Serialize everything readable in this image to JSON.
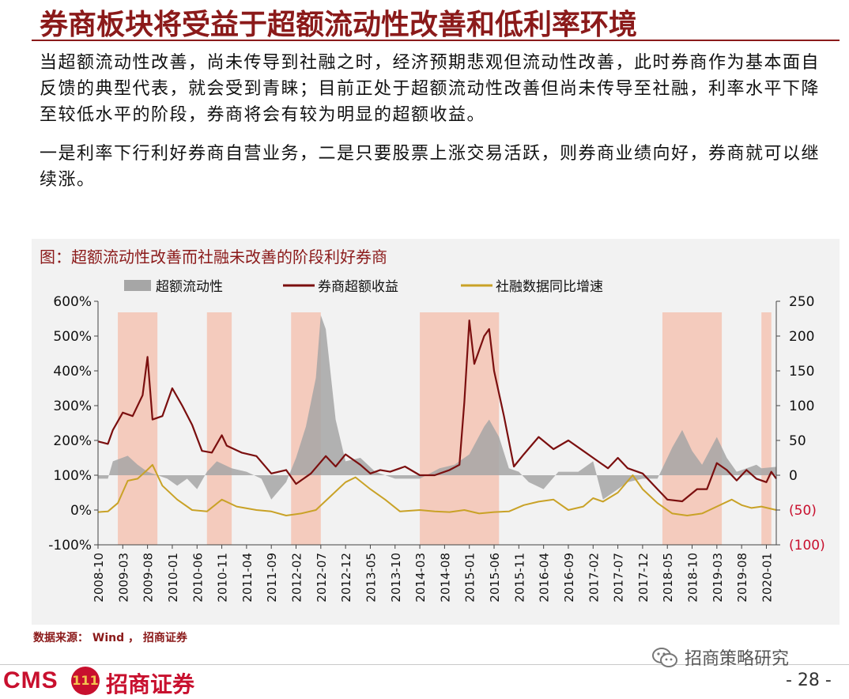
{
  "title": "券商板块将受益于超额流动性改善和低利率环境",
  "paragraphs": [
    "当超额流动性改善，尚未传导到社融之时，经济预期悲观但流动性改善，此时券商作为基本面自反馈的典型代表，就会受到青睐；目前正处于超额流动性改善但尚未传导至社融，利率水平下降至较低水平的阶段，券商将会有较为明显的超额收益。",
    "一是利率下行利好券商自营业务，二是只要股票上涨交易活跃，则券商业绩向好，券商就可以继续涨。"
  ],
  "source": "数据来源： Wind ， 招商证券",
  "footer": {
    "cms": "CMS",
    "badge": "111",
    "company": "招商证券",
    "wechat": "招商策略研究",
    "page": "- 28 -"
  },
  "colors": {
    "brand": "#8b1a1a",
    "area": "#a6a6a6",
    "excess": "#7b0f0f",
    "social": "#c9a227",
    "shade": "#f4c4b4",
    "panel": "#f2f2f2"
  },
  "chart_data": {
    "type": "line",
    "title": "图：超额流动性改善而社融未改善的阶段利好券商",
    "legend": [
      "超额流动性",
      "券商超额收益",
      "社融数据同比增速"
    ],
    "legend_position": "top",
    "grid": false,
    "x_start": "2008-10",
    "x_end": "2020-03",
    "x_ticks": [
      "2008-10",
      "2009-03",
      "2009-08",
      "2010-01",
      "2010-06",
      "2010-11",
      "2011-04",
      "2011-09",
      "2012-02",
      "2012-07",
      "2012-12",
      "2013-05",
      "2013-10",
      "2014-03",
      "2014-08",
      "2015-01",
      "2015-06",
      "2015-11",
      "2016-04",
      "2016-09",
      "2017-02",
      "2017-07",
      "2017-12",
      "2018-05",
      "2018-10",
      "2019-03",
      "2019-08",
      "2020-01"
    ],
    "left_axis": {
      "min": -100,
      "max": 600,
      "ticks": [
        "-100%",
        "0%",
        "100%",
        "200%",
        "300%",
        "400%",
        "500%",
        "600%"
      ]
    },
    "right_axis": {
      "min": -100,
      "max": 250,
      "ticks": [
        "(100)",
        "(50)",
        "0",
        "50",
        "100",
        "150",
        "200",
        "250"
      ]
    },
    "shaded_periods": [
      [
        "2009-02",
        "2009-10"
      ],
      [
        "2010-08",
        "2011-01"
      ],
      [
        "2012-01",
        "2012-07"
      ],
      [
        "2014-03",
        "2015-07"
      ],
      [
        "2018-04",
        "2019-04"
      ],
      [
        "2019-12",
        "2020-02"
      ]
    ],
    "series": [
      {
        "name": "超额流动性",
        "axis": "right",
        "style": "area",
        "points": [
          [
            "2008-10",
            -5
          ],
          [
            "2008-12",
            -5
          ],
          [
            "2009-01",
            20
          ],
          [
            "2009-04",
            28
          ],
          [
            "2009-06",
            15
          ],
          [
            "2009-08",
            5
          ],
          [
            "2009-10",
            0
          ],
          [
            "2009-12",
            -5
          ],
          [
            "2010-02",
            -15
          ],
          [
            "2010-04",
            -5
          ],
          [
            "2010-06",
            -20
          ],
          [
            "2010-08",
            5
          ],
          [
            "2010-10",
            20
          ],
          [
            "2011-01",
            10
          ],
          [
            "2011-04",
            5
          ],
          [
            "2011-07",
            -5
          ],
          [
            "2011-09",
            -35
          ],
          [
            "2011-12",
            -10
          ],
          [
            "2012-02",
            25
          ],
          [
            "2012-04",
            70
          ],
          [
            "2012-06",
            140
          ],
          [
            "2012-07",
            230
          ],
          [
            "2012-08",
            210
          ],
          [
            "2012-10",
            80
          ],
          [
            "2012-12",
            20
          ],
          [
            "2013-03",
            25
          ],
          [
            "2013-06",
            5
          ],
          [
            "2013-10",
            -5
          ],
          [
            "2014-03",
            -5
          ],
          [
            "2014-07",
            10
          ],
          [
            "2014-10",
            15
          ],
          [
            "2015-01",
            30
          ],
          [
            "2015-04",
            70
          ],
          [
            "2015-05",
            80
          ],
          [
            "2015-07",
            55
          ],
          [
            "2015-09",
            10
          ],
          [
            "2015-11",
            5
          ],
          [
            "2016-01",
            -10
          ],
          [
            "2016-04",
            -20
          ],
          [
            "2016-07",
            5
          ],
          [
            "2016-11",
            5
          ],
          [
            "2017-02",
            20
          ],
          [
            "2017-04",
            -35
          ],
          [
            "2017-07",
            -20
          ],
          [
            "2017-09",
            -10
          ],
          [
            "2017-12",
            -5
          ],
          [
            "2018-03",
            -5
          ],
          [
            "2018-06",
            40
          ],
          [
            "2018-08",
            65
          ],
          [
            "2018-10",
            35
          ],
          [
            "2018-12",
            15
          ],
          [
            "2019-03",
            55
          ],
          [
            "2019-05",
            25
          ],
          [
            "2019-07",
            5
          ],
          [
            "2019-09",
            10
          ],
          [
            "2019-11",
            15
          ],
          [
            "2019-12",
            10
          ],
          [
            "2020-03",
            12
          ]
        ]
      },
      {
        "name": "券商超额收益",
        "axis": "left",
        "style": "line",
        "points": [
          [
            "2008-10",
            197
          ],
          [
            "2008-12",
            190
          ],
          [
            "2009-01",
            230
          ],
          [
            "2009-03",
            280
          ],
          [
            "2009-05",
            270
          ],
          [
            "2009-07",
            330
          ],
          [
            "2009-08",
            440
          ],
          [
            "2009-09",
            260
          ],
          [
            "2009-11",
            270
          ],
          [
            "2010-01",
            350
          ],
          [
            "2010-03",
            300
          ],
          [
            "2010-05",
            245
          ],
          [
            "2010-07",
            170
          ],
          [
            "2010-09",
            165
          ],
          [
            "2010-11",
            215
          ],
          [
            "2010-12",
            185
          ],
          [
            "2011-03",
            165
          ],
          [
            "2011-06",
            155
          ],
          [
            "2011-09",
            105
          ],
          [
            "2011-12",
            115
          ],
          [
            "2012-02",
            75
          ],
          [
            "2012-05",
            105
          ],
          [
            "2012-08",
            155
          ],
          [
            "2012-10",
            125
          ],
          [
            "2012-12",
            160
          ],
          [
            "2013-03",
            130
          ],
          [
            "2013-05",
            105
          ],
          [
            "2013-07",
            115
          ],
          [
            "2013-09",
            110
          ],
          [
            "2013-12",
            125
          ],
          [
            "2014-03",
            100
          ],
          [
            "2014-06",
            100
          ],
          [
            "2014-09",
            115
          ],
          [
            "2014-11",
            130
          ],
          [
            "2014-12",
            310
          ],
          [
            "2015-01",
            545
          ],
          [
            "2015-02",
            420
          ],
          [
            "2015-04",
            500
          ],
          [
            "2015-05",
            520
          ],
          [
            "2015-06",
            400
          ],
          [
            "2015-08",
            270
          ],
          [
            "2015-10",
            125
          ],
          [
            "2015-12",
            160
          ],
          [
            "2016-03",
            210
          ],
          [
            "2016-06",
            175
          ],
          [
            "2016-09",
            200
          ],
          [
            "2016-12",
            170
          ],
          [
            "2017-02",
            150
          ],
          [
            "2017-05",
            120
          ],
          [
            "2017-07",
            150
          ],
          [
            "2017-09",
            120
          ],
          [
            "2017-12",
            105
          ],
          [
            "2018-03",
            60
          ],
          [
            "2018-05",
            30
          ],
          [
            "2018-08",
            25
          ],
          [
            "2018-11",
            60
          ],
          [
            "2019-01",
            60
          ],
          [
            "2019-03",
            135
          ],
          [
            "2019-05",
            115
          ],
          [
            "2019-07",
            85
          ],
          [
            "2019-09",
            115
          ],
          [
            "2019-11",
            90
          ],
          [
            "2020-01",
            80
          ],
          [
            "2020-02",
            110
          ],
          [
            "2020-03",
            90
          ]
        ]
      },
      {
        "name": "社融数据同比增速",
        "axis": "right",
        "style": "line",
        "points": [
          [
            "2008-10",
            -53
          ],
          [
            "2008-12",
            -52
          ],
          [
            "2009-02",
            -40
          ],
          [
            "2009-04",
            -8
          ],
          [
            "2009-06",
            -5
          ],
          [
            "2009-08",
            8
          ],
          [
            "2009-09",
            15
          ],
          [
            "2009-11",
            -15
          ],
          [
            "2010-02",
            -35
          ],
          [
            "2010-05",
            -50
          ],
          [
            "2010-08",
            -52
          ],
          [
            "2010-11",
            -35
          ],
          [
            "2011-02",
            -45
          ],
          [
            "2011-06",
            -50
          ],
          [
            "2011-09",
            -52
          ],
          [
            "2011-12",
            -58
          ],
          [
            "2012-03",
            -55
          ],
          [
            "2012-06",
            -50
          ],
          [
            "2012-09",
            -30
          ],
          [
            "2012-12",
            -10
          ],
          [
            "2013-02",
            -3
          ],
          [
            "2013-05",
            -20
          ],
          [
            "2013-08",
            -35
          ],
          [
            "2013-11",
            -52
          ],
          [
            "2014-03",
            -50
          ],
          [
            "2014-06",
            -52
          ],
          [
            "2014-09",
            -53
          ],
          [
            "2014-12",
            -50
          ],
          [
            "2015-03",
            -55
          ],
          [
            "2015-06",
            -53
          ],
          [
            "2015-09",
            -52
          ],
          [
            "2015-12",
            -43
          ],
          [
            "2016-03",
            -38
          ],
          [
            "2016-06",
            -35
          ],
          [
            "2016-09",
            -50
          ],
          [
            "2016-12",
            -45
          ],
          [
            "2017-02",
            -33
          ],
          [
            "2017-04",
            -38
          ],
          [
            "2017-07",
            -25
          ],
          [
            "2017-10",
            0
          ],
          [
            "2017-12",
            -20
          ],
          [
            "2018-03",
            -40
          ],
          [
            "2018-06",
            -55
          ],
          [
            "2018-09",
            -58
          ],
          [
            "2018-12",
            -55
          ],
          [
            "2019-03",
            -45
          ],
          [
            "2019-06",
            -35
          ],
          [
            "2019-08",
            -43
          ],
          [
            "2019-10",
            -47
          ],
          [
            "2019-12",
            -45
          ],
          [
            "2020-03",
            -50
          ]
        ]
      }
    ]
  }
}
